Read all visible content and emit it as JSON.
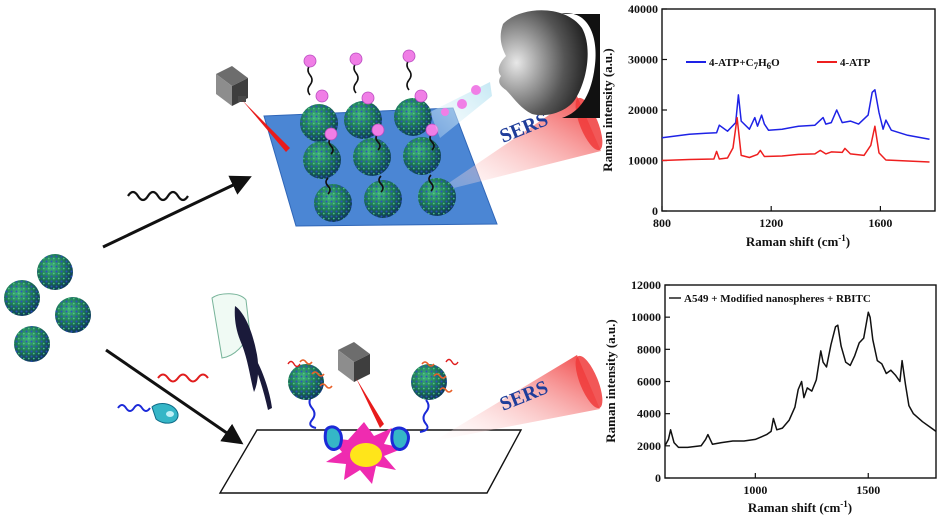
{
  "figure": {
    "sers_top": "SERS",
    "sers_bottom": "SERS"
  },
  "chart_data": [
    {
      "type": "line",
      "xlabel": "Raman shift (cm",
      "xlabel_sup": "-1",
      "xlabel_close": ")",
      "ylabel": "Raman intensity (a.u.)",
      "xlim": [
        800,
        1800
      ],
      "ylim": [
        0,
        40000
      ],
      "xticks": [
        800,
        1200,
        1600
      ],
      "yticks": [
        0,
        10000,
        20000,
        30000,
        40000
      ],
      "xtick_labels": [
        "800",
        "1200",
        "1600"
      ],
      "ytick_labels": [
        "0",
        "10000",
        "20000",
        "30000",
        "40000"
      ],
      "legend_placement": "top-center",
      "series": [
        {
          "name": "4-ATP+C7H6O",
          "name_parts": [
            "4-ATP+C",
            "7",
            "H",
            "6",
            "O"
          ],
          "color": "#1e22e6",
          "x": [
            800,
            900,
            960,
            1000,
            1010,
            1040,
            1070,
            1080,
            1090,
            1120,
            1140,
            1150,
            1165,
            1175,
            1190,
            1240,
            1300,
            1360,
            1390,
            1400,
            1420,
            1440,
            1460,
            1490,
            1520,
            1555,
            1570,
            1580,
            1595,
            1610,
            1620,
            1640,
            1700,
            1780
          ],
          "y": [
            14500,
            15200,
            15400,
            15500,
            17000,
            15800,
            17500,
            23000,
            17800,
            16200,
            18500,
            16800,
            19000,
            17200,
            16000,
            16200,
            16800,
            17000,
            18500,
            17200,
            17500,
            20000,
            17500,
            17800,
            17200,
            19000,
            23500,
            24000,
            19500,
            16200,
            18000,
            16000,
            15000,
            14200
          ]
        },
        {
          "name": "4-ATP",
          "color": "#ee1f1f",
          "x": [
            800,
            900,
            990,
            1000,
            1010,
            1040,
            1060,
            1075,
            1090,
            1120,
            1150,
            1160,
            1175,
            1240,
            1300,
            1360,
            1380,
            1400,
            1420,
            1460,
            1470,
            1490,
            1540,
            1565,
            1580,
            1595,
            1620,
            1700,
            1780
          ],
          "y": [
            10000,
            10200,
            10300,
            11800,
            10300,
            10500,
            12500,
            18500,
            11000,
            10600,
            11200,
            12000,
            10800,
            10900,
            11200,
            11300,
            12000,
            11300,
            11700,
            11600,
            12400,
            11300,
            11000,
            13000,
            16800,
            11500,
            10100,
            9900,
            9700
          ]
        }
      ]
    },
    {
      "type": "line",
      "xlabel": "Raman shift (cm",
      "xlabel_sup": "-1",
      "xlabel_close": ")",
      "ylabel": "Raman intensity (a.u.)",
      "xlim": [
        600,
        1800
      ],
      "ylim": [
        0,
        12000
      ],
      "xticks": [
        1000,
        1500
      ],
      "yticks": [
        0,
        2000,
        4000,
        6000,
        8000,
        10000,
        12000
      ],
      "xtick_labels": [
        "1000",
        "1500"
      ],
      "ytick_labels": [
        "0",
        "2000",
        "4000",
        "6000",
        "8000",
        "10000",
        "12000"
      ],
      "legend_placement": "top-left",
      "series": [
        {
          "name": "A549 + Modified nanospheres + RBITC",
          "color": "#111111",
          "x": [
            600,
            615,
            625,
            640,
            660,
            700,
            760,
            780,
            790,
            810,
            850,
            900,
            950,
            1000,
            1050,
            1070,
            1080,
            1095,
            1120,
            1150,
            1175,
            1190,
            1205,
            1215,
            1230,
            1250,
            1270,
            1290,
            1300,
            1315,
            1335,
            1355,
            1365,
            1380,
            1400,
            1420,
            1440,
            1460,
            1480,
            1500,
            1508,
            1520,
            1540,
            1560,
            1580,
            1600,
            1620,
            1640,
            1650,
            1665,
            1680,
            1700,
            1740,
            1780,
            1800
          ],
          "y": [
            2000,
            2400,
            3000,
            2200,
            1900,
            1900,
            2000,
            2400,
            2700,
            2100,
            2200,
            2300,
            2300,
            2400,
            2700,
            2900,
            3700,
            3000,
            3100,
            3600,
            4400,
            5500,
            6000,
            5000,
            5600,
            5400,
            6100,
            7900,
            7200,
            6900,
            8300,
            9400,
            9500,
            8200,
            7200,
            7000,
            7600,
            8400,
            8700,
            10300,
            10000,
            8600,
            7300,
            7100,
            6500,
            6700,
            6400,
            6000,
            7300,
            5800,
            4500,
            4000,
            3500,
            3100,
            2900
          ]
        }
      ]
    }
  ]
}
